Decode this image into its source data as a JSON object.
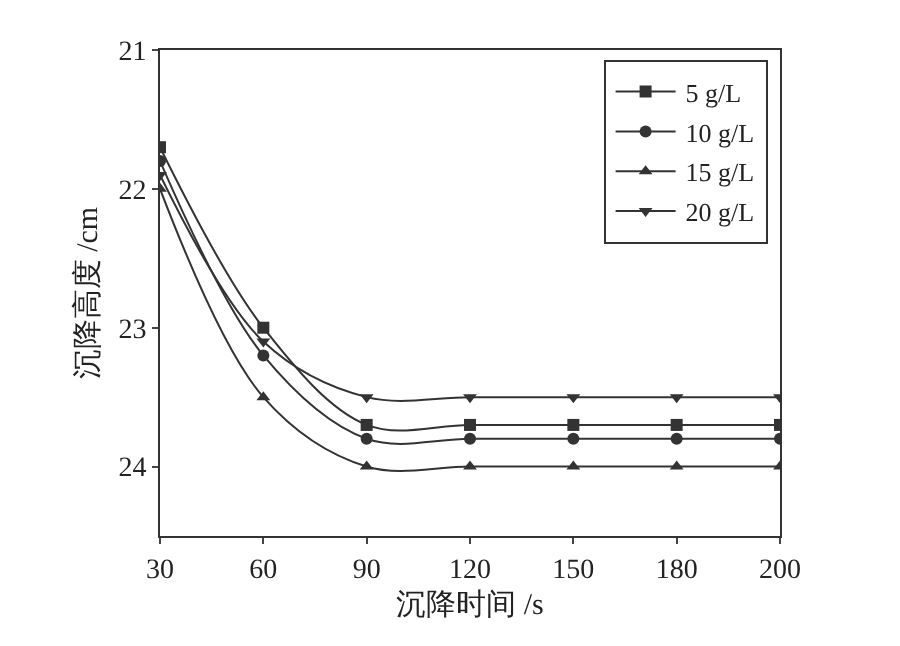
{
  "chart_data": {
    "type": "line",
    "xlabel": "沉降时间 /s",
    "ylabel": "沉降高度 /cm",
    "categories": [
      "30",
      "60",
      "90",
      "120",
      "150",
      "180",
      "200"
    ],
    "ylim": [
      24.5,
      21
    ],
    "yticks": [
      21,
      22,
      23,
      24
    ],
    "grid": false,
    "legend": "top right",
    "line_style": "solid",
    "series": [
      {
        "name": "5 g/L",
        "color": "#333333",
        "marker": "square",
        "values": [
          21.7,
          23.0,
          23.7,
          23.7,
          23.7,
          23.7,
          23.7
        ]
      },
      {
        "name": "10 g/L",
        "color": "#333333",
        "marker": "circle",
        "values": [
          21.8,
          23.2,
          23.8,
          23.8,
          23.8,
          23.8,
          23.8
        ]
      },
      {
        "name": "15 g/L",
        "color": "#333333",
        "marker": "triangle",
        "values": [
          22.0,
          23.5,
          24.0,
          24.0,
          24.0,
          24.0,
          24.0
        ]
      },
      {
        "name": "20 g/L",
        "color": "#333333",
        "marker": "triangle-down",
        "values": [
          21.9,
          23.1,
          23.5,
          23.5,
          23.5,
          23.5,
          23.5
        ]
      }
    ]
  }
}
